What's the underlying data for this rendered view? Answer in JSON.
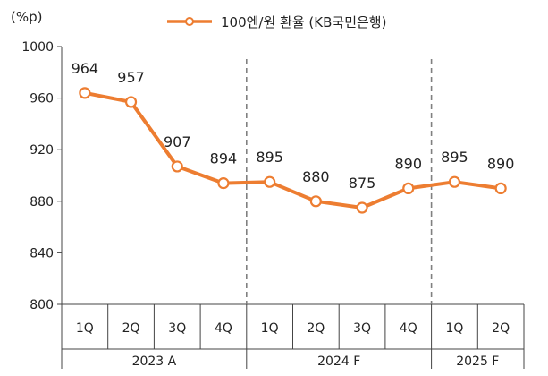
{
  "chart_data": {
    "type": "line",
    "unit_label": "(%p)",
    "legend": {
      "label": "100엔/원 환율 (KB국민은행)",
      "position": "top-center"
    },
    "series": [
      {
        "name": "100엔/원 환율 (KB국민은행)",
        "color": "#ED7D31",
        "values": [
          964,
          957,
          907,
          894,
          895,
          880,
          875,
          890,
          895,
          890
        ]
      }
    ],
    "categories": [
      "1Q",
      "2Q",
      "3Q",
      "4Q",
      "1Q",
      "2Q",
      "3Q",
      "4Q",
      "1Q",
      "2Q"
    ],
    "groups": [
      {
        "label": "2023 A",
        "count": 4
      },
      {
        "label": "2024 F",
        "count": 4
      },
      {
        "label": "2025 F",
        "count": 2
      }
    ],
    "ylim": [
      800,
      1000
    ],
    "yticks": [
      "800",
      "840",
      "880",
      "920",
      "960",
      "1000"
    ],
    "data_labels": [
      "964",
      "957",
      "907",
      "894",
      "895",
      "880",
      "875",
      "890",
      "895",
      "890"
    ],
    "grid": false
  }
}
